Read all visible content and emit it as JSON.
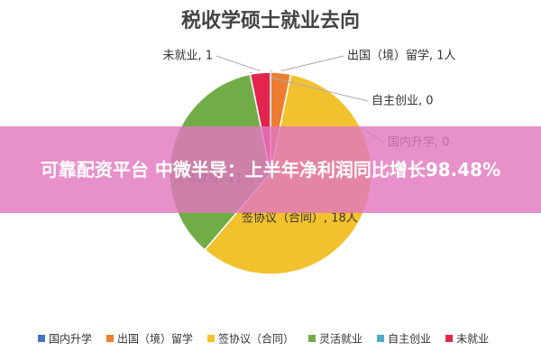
{
  "chart_data": {
    "type": "pie",
    "title": "税收学硕士就业去向",
    "categories": [
      "国内升学",
      "出国（境）留学",
      "签协议（合同）",
      "灵活就业",
      "自主创业",
      "未就业"
    ],
    "values": [
      0,
      1,
      18,
      11,
      0,
      1
    ],
    "value_labels": [
      "国内升学, 0",
      "出国（境）留学, 1人",
      "签协议（合同）, 18人",
      "灵活就业, 11人",
      "自主创业, 0",
      "未就业, 1"
    ],
    "colors": [
      "#4472c4",
      "#ed7d31",
      "#f2c12e",
      "#70ad47",
      "#4bacc6",
      "#e2254f"
    ],
    "legend": "bottom"
  },
  "banner": {
    "text": "可靠配资平台 中微半导：上半年净利润同比增长98.48%"
  }
}
